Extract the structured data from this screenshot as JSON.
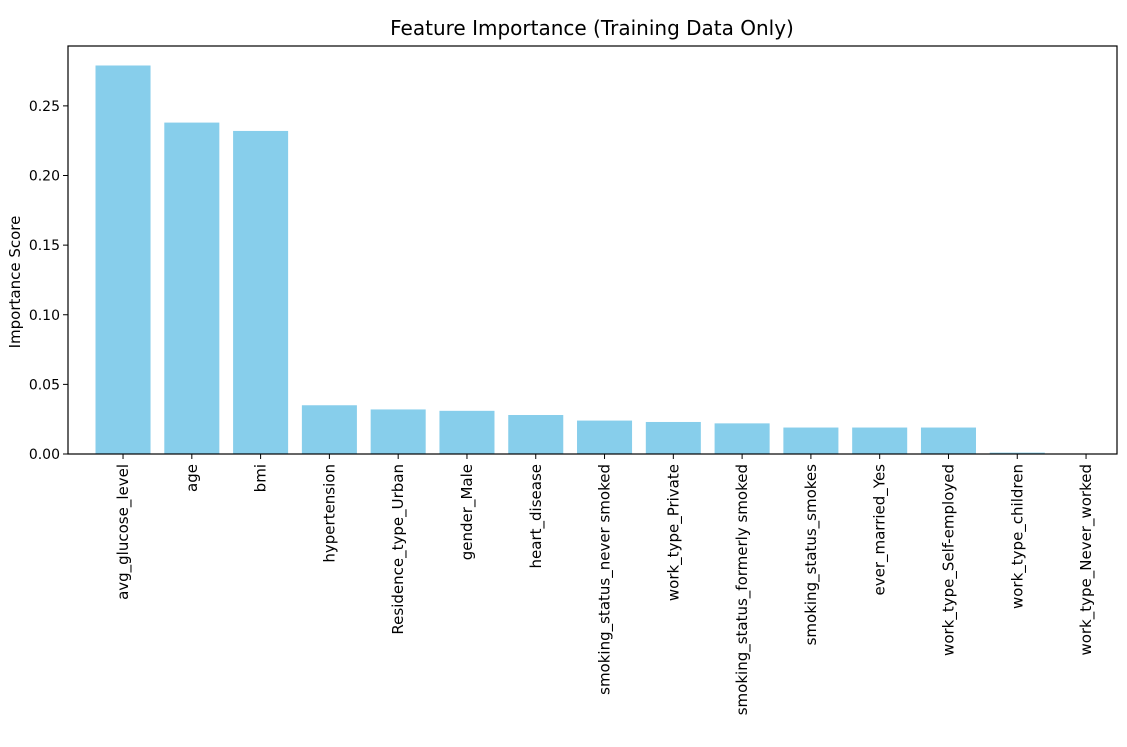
{
  "chart_data": {
    "type": "bar",
    "title": "Feature Importance (Training Data Only)",
    "xlabel": "",
    "ylabel": "Importance Score",
    "categories": [
      "avg_glucose_level",
      "age",
      "bmi",
      "hypertension",
      "Residence_type_Urban",
      "gender_Male",
      "heart_disease",
      "smoking_status_never smoked",
      "work_type_Private",
      "smoking_status_formerly smoked",
      "smoking_status_smokes",
      "ever_married_Yes",
      "work_type_Self-employed",
      "work_type_children",
      "work_type_Never_worked"
    ],
    "values": [
      0.279,
      0.238,
      0.232,
      0.035,
      0.032,
      0.031,
      0.028,
      0.024,
      0.023,
      0.022,
      0.019,
      0.019,
      0.019,
      0.001,
      0.0001
    ],
    "ylim": [
      0,
      0.293
    ],
    "yticks": [
      0.0,
      0.05,
      0.1,
      0.15,
      0.2,
      0.25
    ],
    "ytick_labels": [
      "0.00",
      "0.05",
      "0.10",
      "0.15",
      "0.20",
      "0.25"
    ],
    "bar_color": "#87ceeb",
    "grid": false,
    "legend": "none"
  }
}
